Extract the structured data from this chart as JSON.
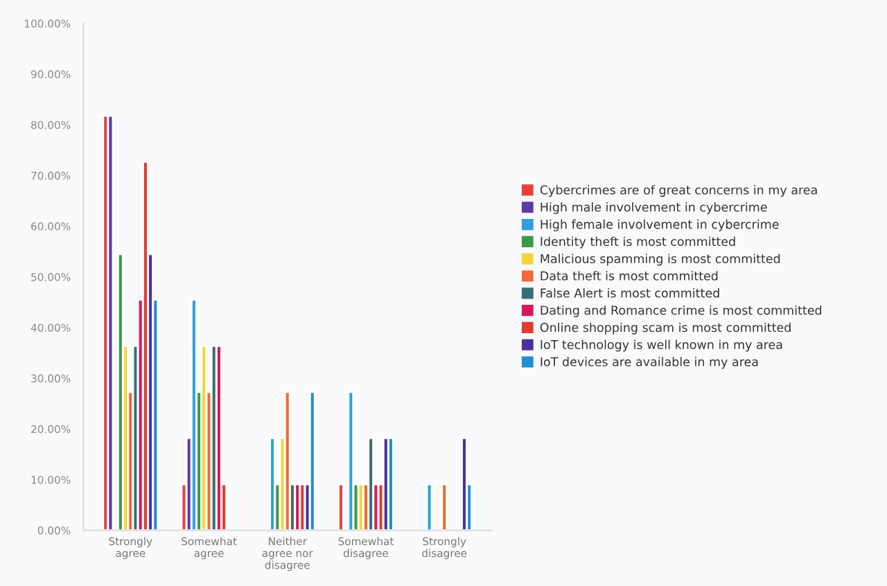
{
  "chart_data": {
    "type": "bar",
    "categories": [
      "Strongly\nagree",
      "Somewhat\nagree",
      "Neither\nagree nor\ndisagree",
      "Somewhat\ndisagree",
      "Strongly\ndisagree"
    ],
    "series": [
      {
        "name": "Cybercrimes are of great concerns in my area",
        "color": "#e8413a",
        "values": [
          81.8,
          9.1,
          null,
          9.1,
          null
        ]
      },
      {
        "name": "High male involvement in cybercrime",
        "color": "#5b3aa8",
        "values": [
          81.8,
          18.2,
          null,
          null,
          null
        ]
      },
      {
        "name": "High female involvement in cybercrime",
        "color": "#2fa0dc",
        "values": [
          null,
          45.5,
          18.2,
          27.3,
          9.1
        ]
      },
      {
        "name": "Identity theft is most committed",
        "color": "#3a9a4a",
        "values": [
          54.5,
          27.3,
          9.1,
          9.1,
          null
        ]
      },
      {
        "name": "Malicious spamming is most committed",
        "color": "#f2d53c",
        "values": [
          36.4,
          36.4,
          18.2,
          9.1,
          null
        ]
      },
      {
        "name": "Data theft is most committed",
        "color": "#f06a35",
        "values": [
          27.3,
          27.3,
          27.3,
          9.1,
          9.1
        ]
      },
      {
        "name": "False Alert is most committed",
        "color": "#3a6e75",
        "values": [
          36.4,
          36.4,
          9.1,
          18.2,
          null
        ]
      },
      {
        "name": "Dating and Romance crime is most committed",
        "color": "#d8185a",
        "values": [
          45.5,
          36.4,
          9.1,
          9.1,
          null
        ]
      },
      {
        "name": "Online shopping scam is most committed",
        "color": "#e03c31",
        "values": [
          72.7,
          9.1,
          9.1,
          9.1,
          null
        ]
      },
      {
        "name": "IoT technology is well known in my area",
        "color": "#4b30a0",
        "values": [
          54.5,
          null,
          9.1,
          18.2,
          18.2
        ]
      },
      {
        "name": "IoT devices are available in my area",
        "color": "#1f8fd0",
        "values": [
          45.5,
          null,
          27.3,
          18.2,
          9.1
        ]
      }
    ],
    "ylim": [
      0,
      100
    ],
    "yticks": [
      {
        "value": 0,
        "label": "0.00%"
      },
      {
        "value": 10,
        "label": "10.00%"
      },
      {
        "value": 20,
        "label": "20.00%"
      },
      {
        "value": 30,
        "label": "30.00%"
      },
      {
        "value": 40,
        "label": "40.00%"
      },
      {
        "value": 50,
        "label": "50.00%"
      },
      {
        "value": 60,
        "label": "60.00%"
      },
      {
        "value": 70,
        "label": "70.00%"
      },
      {
        "value": 80,
        "label": "80.00%"
      },
      {
        "value": 90,
        "label": "90.00%"
      },
      {
        "value": 100,
        "label": "100.00%"
      }
    ],
    "grid": false,
    "legend": "right"
  }
}
